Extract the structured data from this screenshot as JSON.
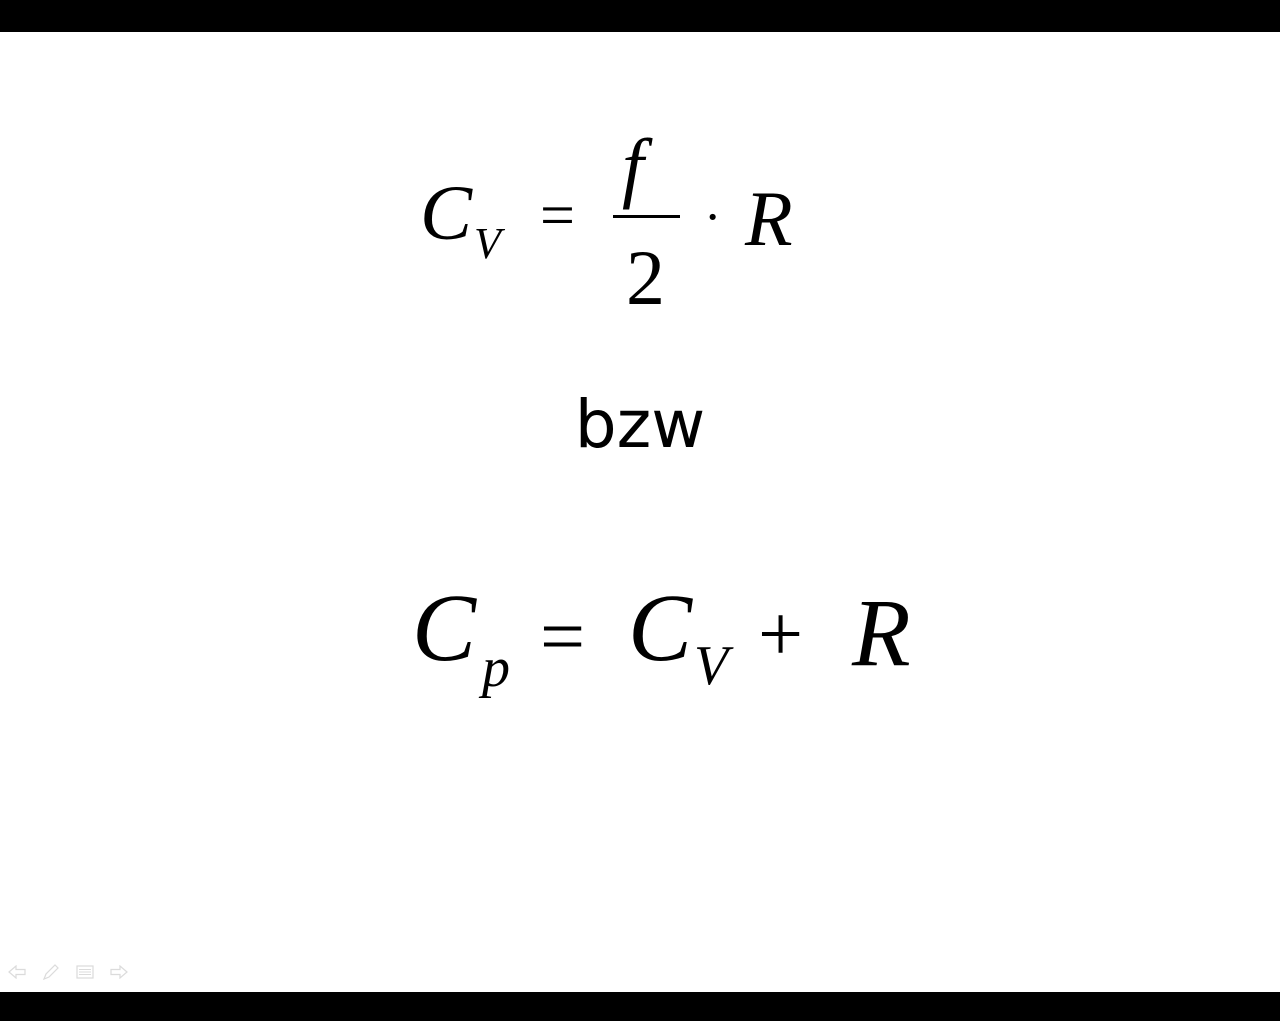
{
  "slide": {
    "equation1": {
      "lhs": "C",
      "lhs_sub": "V",
      "equals": "=",
      "numerator": "f",
      "denominator": "2",
      "times": "·",
      "rhs": "R"
    },
    "connector": "bzw",
    "equation2": {
      "lhs": "C",
      "lhs_sub": "p",
      "equals": "=",
      "term1": "C",
      "term1_sub": "V",
      "plus": "+",
      "term2": "R"
    }
  },
  "nav": {
    "icons": [
      "previous-slide-icon",
      "pen-icon",
      "slide-menu-icon",
      "next-slide-icon"
    ],
    "icon_color": "#9a9a9a"
  },
  "colors": {
    "slide_background": "#ffffff",
    "letterbox": "#000000",
    "text": "#000000"
  }
}
